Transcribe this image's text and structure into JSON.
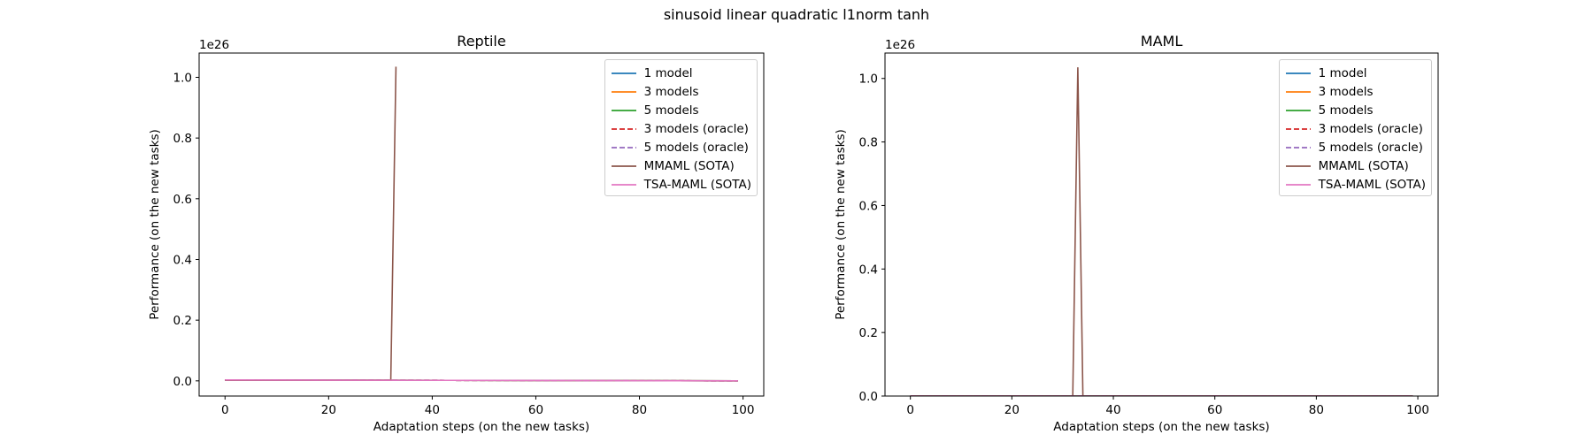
{
  "suptitle": "sinusoid linear quadratic l1norm tanh",
  "chart_data": [
    {
      "type": "line",
      "title": "Reptile",
      "xlabel": "Adaptation steps (on the new tasks)",
      "ylabel": "Performance (on the new tasks)",
      "y_offset_label": "1e26",
      "xlim": [
        -5,
        104
      ],
      "ylim": [
        -0.05,
        1.08
      ],
      "xticks": [
        0,
        20,
        40,
        60,
        80,
        100
      ],
      "yticks": [
        0.0,
        0.2,
        0.4,
        0.6,
        0.8,
        1.0
      ],
      "ytick_labels": [
        "0.0",
        "0.2",
        "0.4",
        "0.6",
        "0.8",
        "1.0"
      ],
      "legend_position": "top-right",
      "series": [
        {
          "name": "1 model",
          "color": "#1f77b4",
          "dash": "solid",
          "x": [
            0,
            99
          ],
          "y": [
            0.003,
            0.0
          ]
        },
        {
          "name": "3 models",
          "color": "#ff7f0e",
          "dash": "solid",
          "x": [
            0,
            99
          ],
          "y": [
            0.003,
            0.0
          ]
        },
        {
          "name": "5 models",
          "color": "#2ca02c",
          "dash": "solid",
          "x": [
            0,
            99
          ],
          "y": [
            0.003,
            0.0
          ]
        },
        {
          "name": "3 models (oracle)",
          "color": "#d62728",
          "dash": "dashed",
          "x": [
            0,
            99
          ],
          "y": [
            0.003,
            0.0
          ]
        },
        {
          "name": "5 models (oracle)",
          "color": "#9467bd",
          "dash": "dashed",
          "x": [
            0,
            99
          ],
          "y": [
            0.003,
            0.0
          ]
        },
        {
          "name": "MMAML (SOTA)",
          "color": "#8c564b",
          "dash": "solid",
          "x": [
            0,
            32,
            33
          ],
          "y": [
            0.002,
            0.002,
            1.035
          ]
        },
        {
          "name": "TSA-MAML (SOTA)",
          "color": "#e377c2",
          "dash": "solid",
          "x": [
            0,
            99
          ],
          "y": [
            0.003,
            0.0
          ]
        }
      ]
    },
    {
      "type": "line",
      "title": "MAML",
      "xlabel": "Adaptation steps (on the new tasks)",
      "ylabel": "Performance (on the new tasks)",
      "y_offset_label": "1e26",
      "xlim": [
        -5,
        104
      ],
      "ylim": [
        0.0,
        1.08
      ],
      "xticks": [
        0,
        20,
        40,
        60,
        80,
        100
      ],
      "yticks": [
        0.0,
        0.2,
        0.4,
        0.6,
        0.8,
        1.0
      ],
      "ytick_labels": [
        "0.0",
        "0.2",
        "0.4",
        "0.6",
        "0.8",
        "1.0"
      ],
      "legend_position": "top-right",
      "series": [
        {
          "name": "1 model",
          "color": "#1f77b4",
          "dash": "solid",
          "x": [
            0,
            99
          ],
          "y": [
            0.0,
            0.0
          ]
        },
        {
          "name": "3 models",
          "color": "#ff7f0e",
          "dash": "solid",
          "x": [
            0,
            99
          ],
          "y": [
            0.0,
            0.0
          ]
        },
        {
          "name": "5 models",
          "color": "#2ca02c",
          "dash": "solid",
          "x": [
            0,
            99
          ],
          "y": [
            0.0,
            0.0
          ]
        },
        {
          "name": "3 models (oracle)",
          "color": "#d62728",
          "dash": "dashed",
          "x": [
            0,
            99
          ],
          "y": [
            0.0,
            0.0
          ]
        },
        {
          "name": "5 models (oracle)",
          "color": "#9467bd",
          "dash": "dashed",
          "x": [
            0,
            99
          ],
          "y": [
            0.0,
            0.0
          ]
        },
        {
          "name": "MMAML (SOTA)",
          "color": "#8c564b",
          "dash": "solid",
          "x": [
            0,
            32,
            33,
            34,
            99
          ],
          "y": [
            0.0,
            0.0,
            1.035,
            0.0,
            0.0
          ]
        },
        {
          "name": "TSA-MAML (SOTA)",
          "color": "#e377c2",
          "dash": "solid",
          "x": [
            0,
            99
          ],
          "y": [
            0.0,
            0.0
          ]
        }
      ]
    }
  ]
}
